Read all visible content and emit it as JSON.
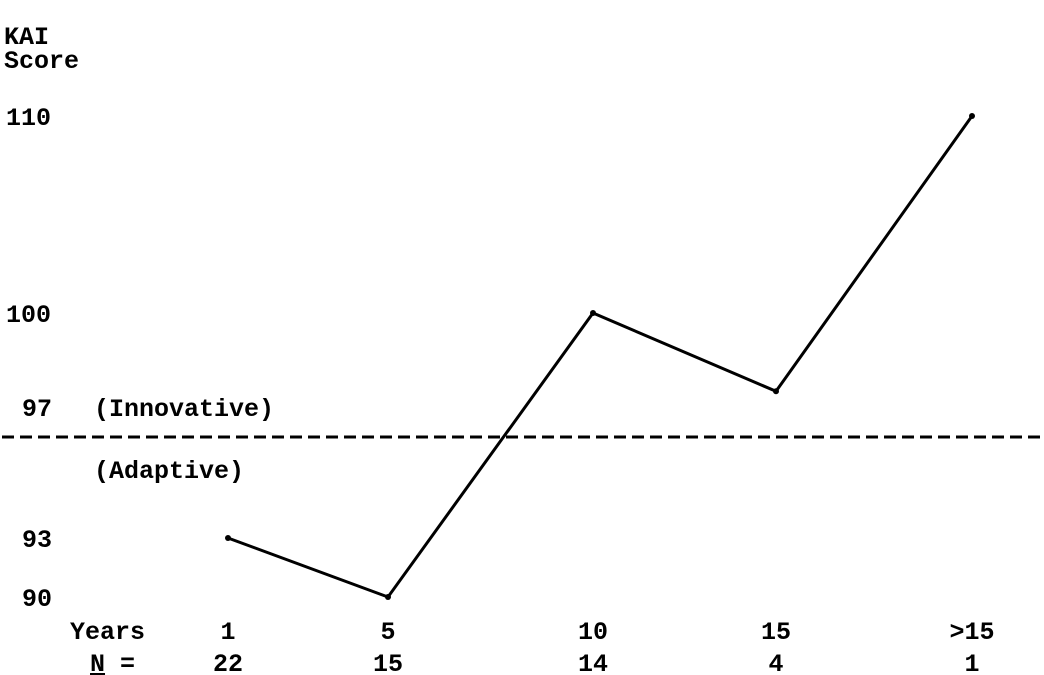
{
  "chart_data": {
    "type": "line",
    "title": "",
    "ylabel_lines": [
      "KAI",
      "Score"
    ],
    "xlabel": "Years",
    "n_label": "= ",
    "n_label_underlined": "N",
    "categories": [
      "1",
      "5",
      "10",
      "15",
      ">15"
    ],
    "n_values": [
      "22",
      "15",
      "14",
      "4",
      "1"
    ],
    "series": [
      {
        "values": [
          93,
          90,
          100,
          97.5,
          110
        ]
      }
    ],
    "y_ticks": [
      {
        "value": 110,
        "label": "110"
      },
      {
        "value": 100,
        "label": "100"
      },
      {
        "value": 97,
        "label": "97"
      },
      {
        "value": 93,
        "label": "93"
      },
      {
        "value": 90,
        "label": "90"
      }
    ],
    "threshold": {
      "value": 96.5,
      "style": "dashed",
      "label_above": "(Innovative)",
      "label_below": "(Adaptive)"
    },
    "ylim": [
      90,
      110
    ],
    "grid": false,
    "colors": {
      "line": "#000000",
      "text": "#000000",
      "background": "#ffffff"
    }
  }
}
